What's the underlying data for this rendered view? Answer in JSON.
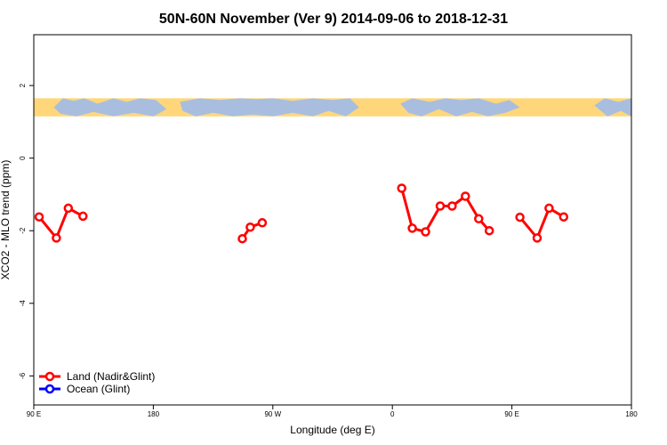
{
  "chart_data": {
    "type": "line",
    "title": "50N-60N November (Ver 9)   2014-09-06 to 2018-12-31",
    "xlabel": "Longitude (deg E)",
    "ylabel": "XCO2 - MLO trend (ppm)",
    "x_ticks": [
      {
        "value": 90,
        "label": "90 E"
      },
      {
        "value": 180,
        "label": "180"
      },
      {
        "value": 270,
        "label": "90 W"
      },
      {
        "value": 360,
        "label": "0"
      },
      {
        "value": 450,
        "label": "90 E"
      },
      {
        "value": 540,
        "label": "180"
      }
    ],
    "xlim": [
      90,
      540
    ],
    "y_ticks": [
      2,
      0,
      -2,
      -4,
      -6
    ],
    "ylim": [
      -6.8,
      3.4
    ],
    "legend": {
      "placement": "bottom-left",
      "entries": [
        {
          "name": "Land (Nadir&Glint)",
          "color": "#ff0000"
        },
        {
          "name": "Ocean (Glint)",
          "color": "#0000ff"
        }
      ]
    },
    "map_band": {
      "y_top": 1.65,
      "y_bottom": 1.15,
      "ocean_color": "#ffd77a",
      "land_color": "#a9bedf"
    },
    "series": [
      {
        "name": "Land (Nadir&Glint)",
        "color": "#ff0000",
        "segments": [
          [
            [
              94,
              -1.62
            ],
            [
              107,
              -2.2
            ],
            [
              116,
              -1.38
            ],
            [
              127,
              -1.6
            ]
          ],
          [
            [
              247,
              -2.22
            ],
            [
              253,
              -1.9
            ],
            [
              262,
              -1.78
            ]
          ],
          [
            [
              367,
              -0.83
            ],
            [
              375,
              -1.93
            ],
            [
              385,
              -2.03
            ],
            [
              396,
              -1.32
            ],
            [
              405,
              -1.32
            ],
            [
              415,
              -1.05
            ],
            [
              425,
              -1.67
            ],
            [
              433,
              -2.0
            ]
          ],
          [
            [
              456,
              -1.63
            ],
            [
              469,
              -2.2
            ],
            [
              478,
              -1.38
            ],
            [
              489,
              -1.62
            ]
          ]
        ]
      },
      {
        "name": "Ocean (Glint)",
        "color": "#0000ff",
        "segments": []
      }
    ]
  }
}
